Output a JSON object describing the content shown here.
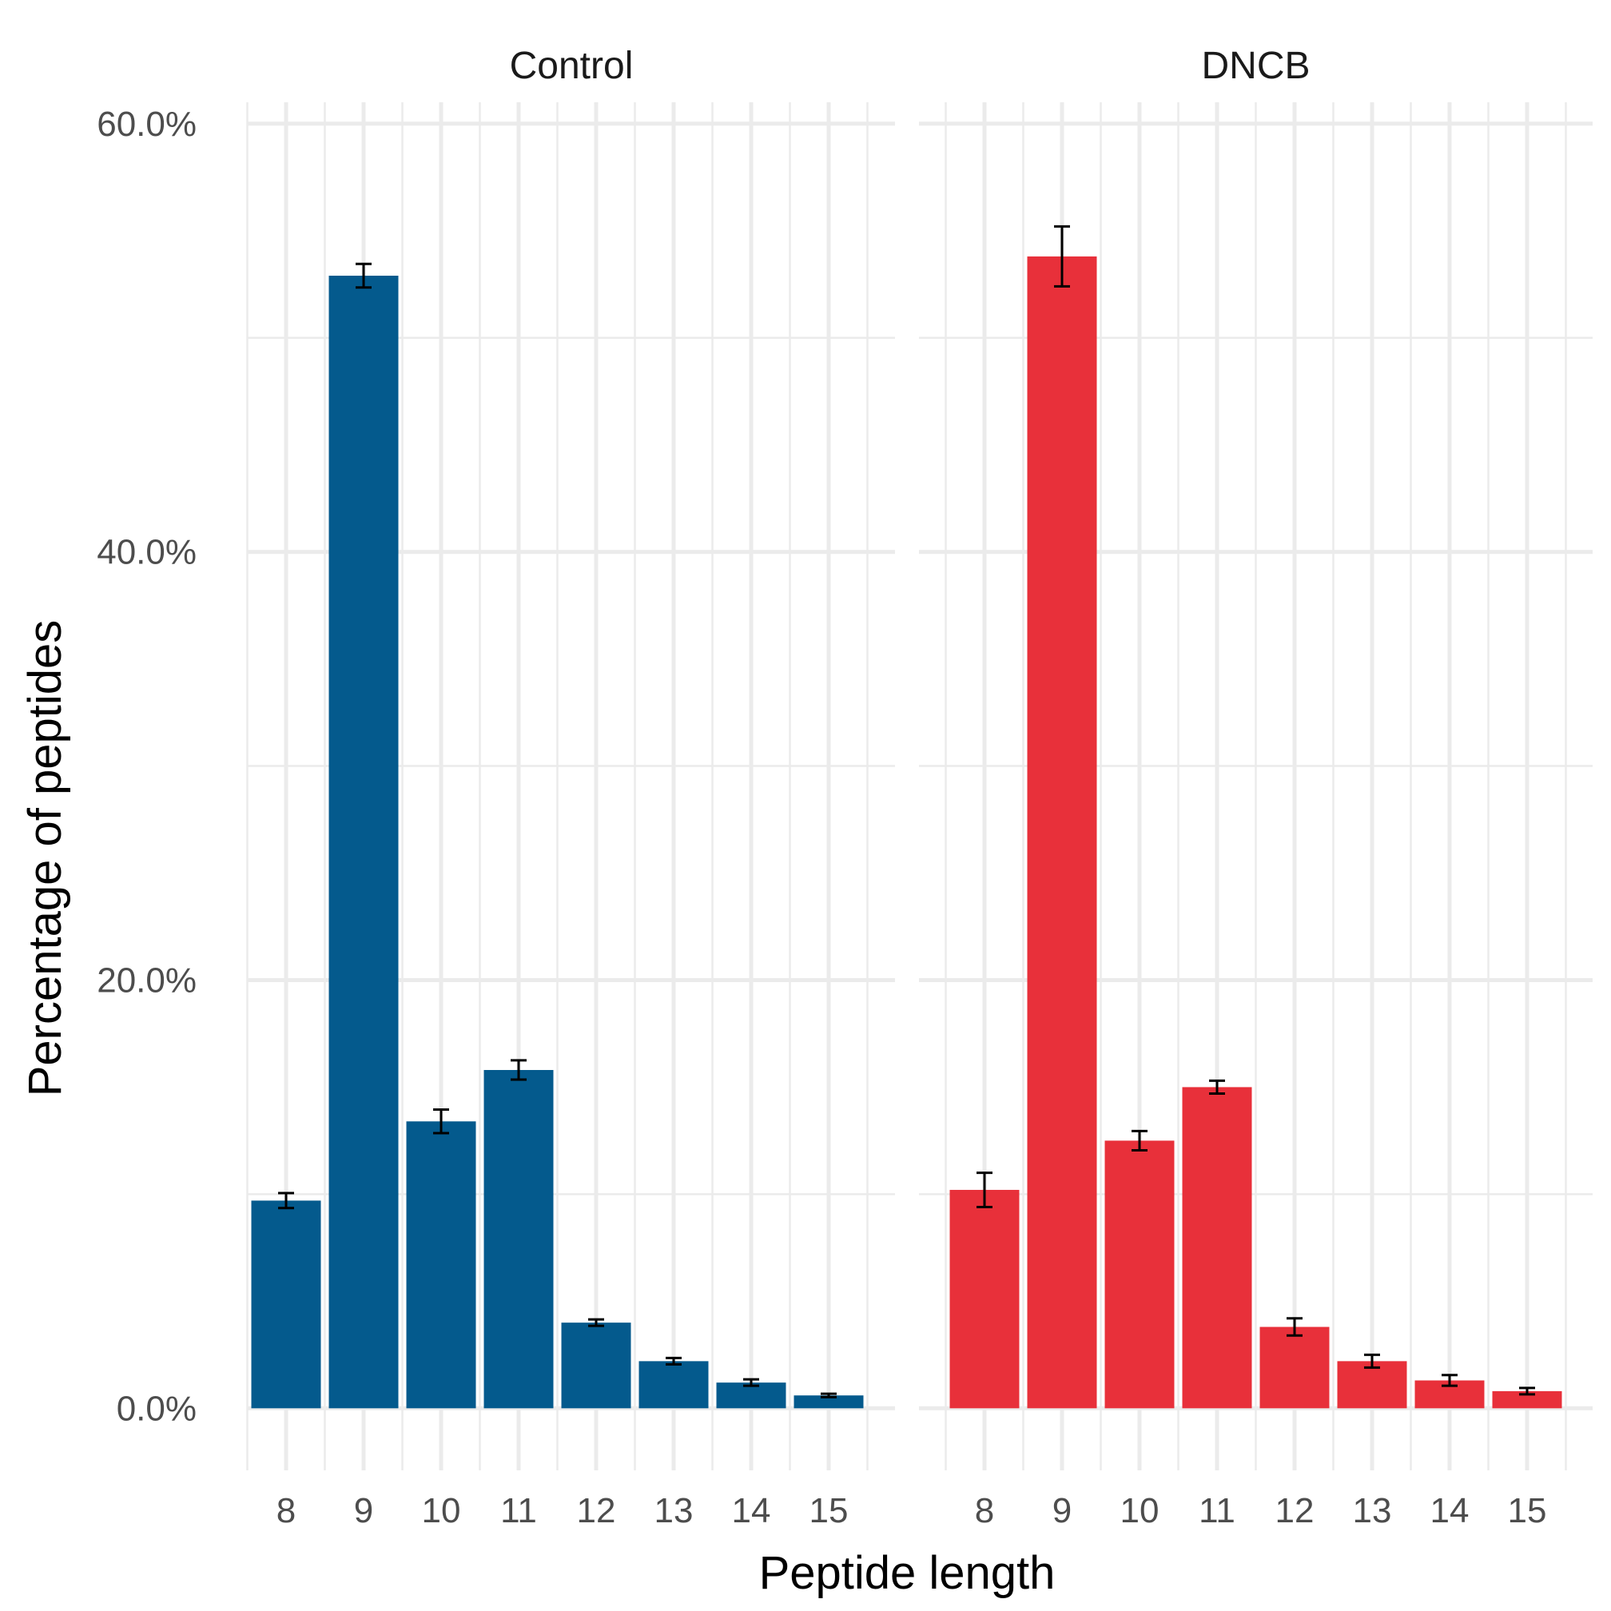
{
  "chart_data": {
    "type": "bar",
    "xlabel": "Peptide length",
    "ylabel": "Percentage of peptides",
    "categories": [
      "8",
      "9",
      "10",
      "11",
      "12",
      "13",
      "14",
      "15"
    ],
    "y_ticks": [
      "0.0%",
      "20.0%",
      "40.0%",
      "60.0%"
    ],
    "ylim": [
      -2.9,
      61
    ],
    "grid": true,
    "legend": "none",
    "panels": [
      {
        "name": "Control",
        "color": "#045a8d",
        "values": [
          9.7,
          52.9,
          13.4,
          15.8,
          4.0,
          2.2,
          1.2,
          0.6
        ],
        "error": [
          0.35,
          0.55,
          0.55,
          0.45,
          0.15,
          0.15,
          0.15,
          0.08
        ]
      },
      {
        "name": "DNCB",
        "color": "#e8303a",
        "values": [
          10.2,
          53.8,
          12.5,
          15.0,
          3.8,
          2.2,
          1.3,
          0.8
        ],
        "error": [
          0.8,
          1.4,
          0.45,
          0.3,
          0.4,
          0.3,
          0.25,
          0.15
        ]
      }
    ]
  }
}
